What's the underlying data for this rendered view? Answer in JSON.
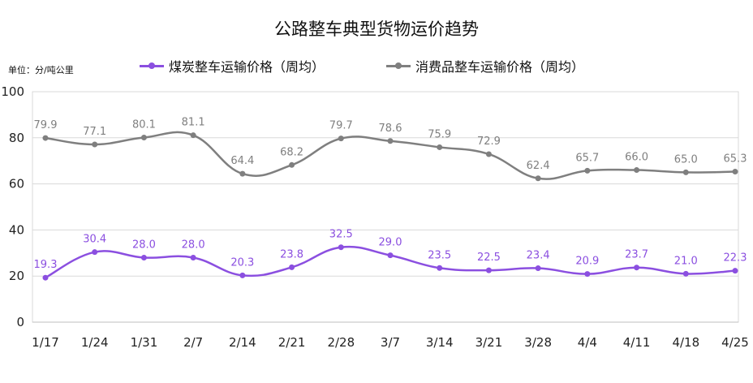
{
  "chart_data": {
    "type": "line",
    "title": "公路整车典型货物运价趋势",
    "unit_label": "单位：分/吨公里",
    "categories": [
      "1/17",
      "1/24",
      "1/31",
      "2/7",
      "2/14",
      "2/21",
      "2/28",
      "3/7",
      "3/14",
      "3/21",
      "3/28",
      "4/4",
      "4/11",
      "4/18",
      "4/25"
    ],
    "series": [
      {
        "name": "煤炭整车运输价格（周均）",
        "color": "#8b4fe0",
        "values": [
          19.3,
          30.4,
          28.0,
          28.0,
          20.3,
          23.8,
          32.5,
          29.0,
          23.5,
          22.5,
          23.4,
          20.9,
          23.7,
          21.0,
          22.3
        ],
        "labels": [
          "19.3",
          "30.4",
          "28.0",
          "28.0",
          "20.3",
          "23.8",
          "32.5",
          "29.0",
          "23.5",
          "22.5",
          "23.4",
          "20.9",
          "23.7",
          "21.0",
          "22.3"
        ]
      },
      {
        "name": "消费品整车运输价格（周均）",
        "color": "#7f7f7f",
        "values": [
          79.9,
          77.1,
          80.1,
          81.1,
          64.4,
          68.2,
          79.7,
          78.6,
          75.9,
          72.9,
          62.4,
          65.7,
          66.0,
          65.0,
          65.3
        ],
        "labels": [
          "79.9",
          "77.1",
          "80.1",
          "81.1",
          "64.4",
          "68.2",
          "79.7",
          "78.6",
          "75.9",
          "72.9",
          "62.4",
          "65.7",
          "66.0",
          "65.0",
          "65.3"
        ]
      }
    ],
    "ylim": [
      0,
      100
    ],
    "yticks": [
      "0",
      "20",
      "40",
      "60",
      "80",
      "100"
    ],
    "grid": true,
    "legend_position": "top"
  }
}
